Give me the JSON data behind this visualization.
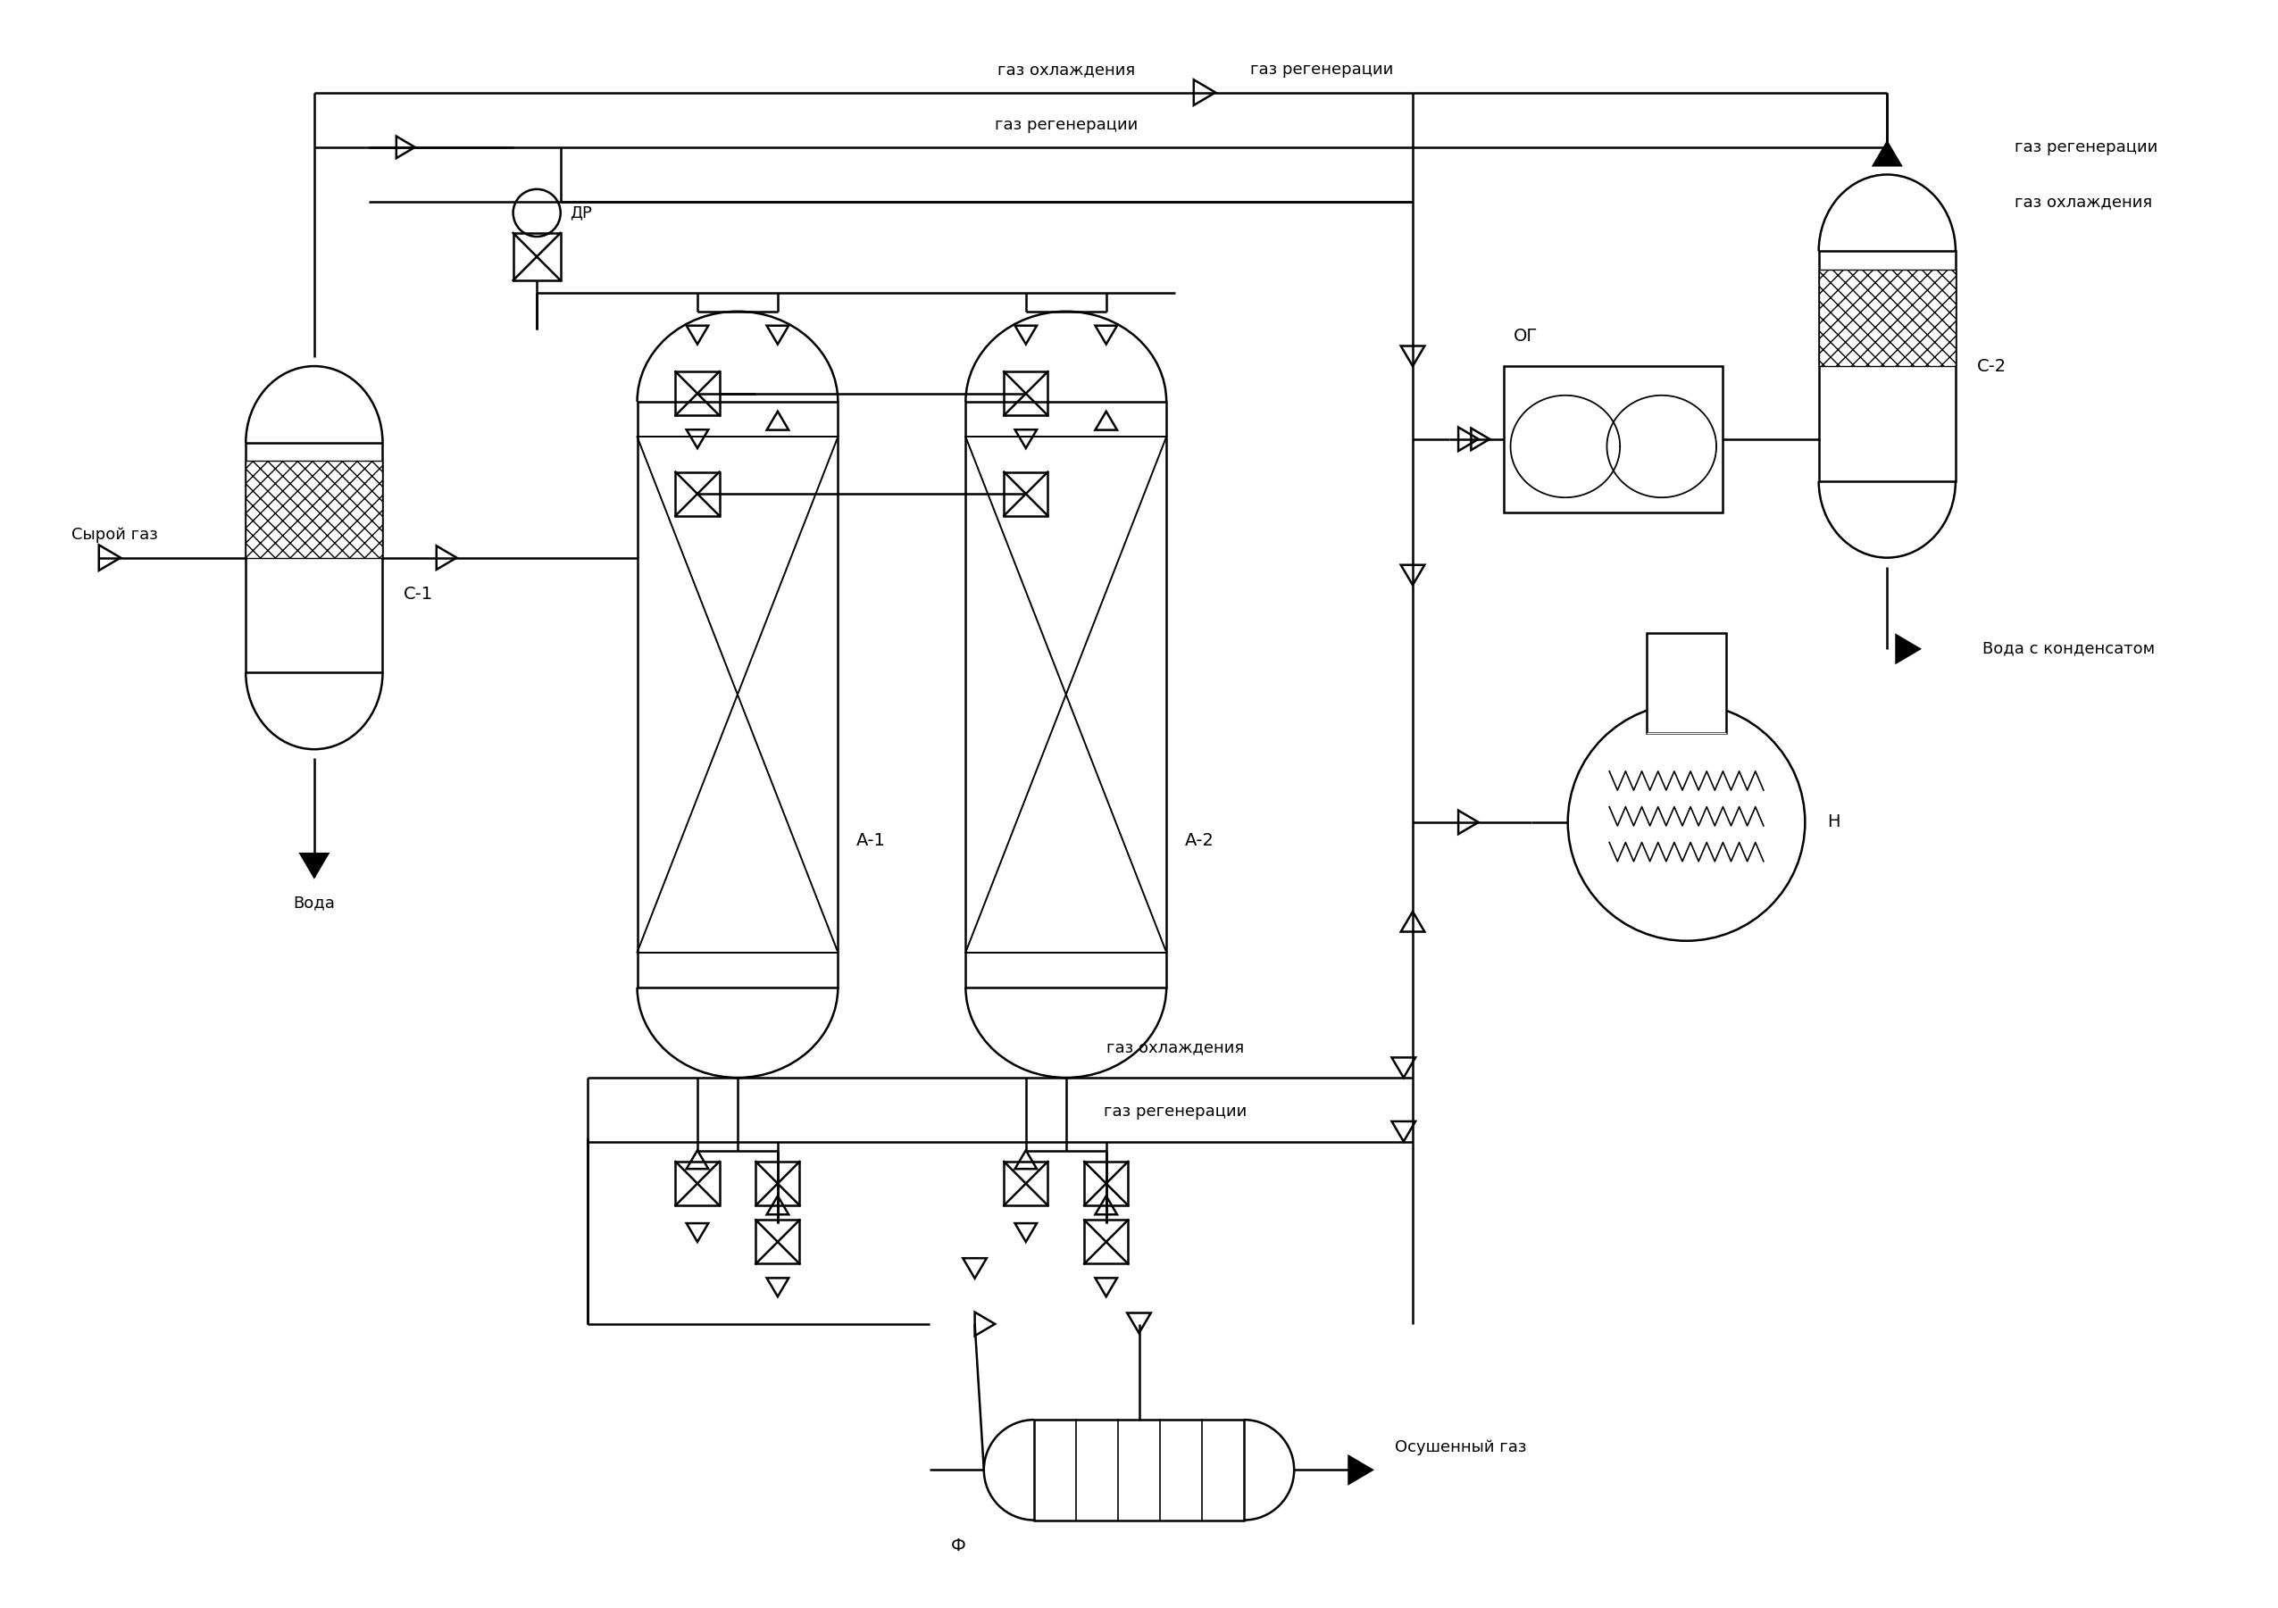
{
  "bg_color": "#ffffff",
  "line_color": "#000000",
  "fig_width": 25.51,
  "fig_height": 18.01,
  "labels": {
    "raw_gas": "Сырой газ",
    "water": "Вода",
    "water_condensate": "Вода с конденсатом",
    "dry_gas": "Осушенный газ",
    "gas_cooling_top": "газ охлаждения",
    "gas_regen_top1": "газ регенерации",
    "gas_regen_top2": "газ регенерации",
    "gas_regen_right1": "газ регенерации",
    "gas_cooling_right": "газ охлаждения",
    "gas_cooling_bot": "газ охлаждения",
    "gas_regen_bot": "газ регенерации",
    "A1": "А-1",
    "A2": "А-2",
    "C1": "С-1",
    "C2": "С-2",
    "DR": "ДР",
    "OG": "ОГ",
    "H": "Н",
    "F": "Ф"
  }
}
